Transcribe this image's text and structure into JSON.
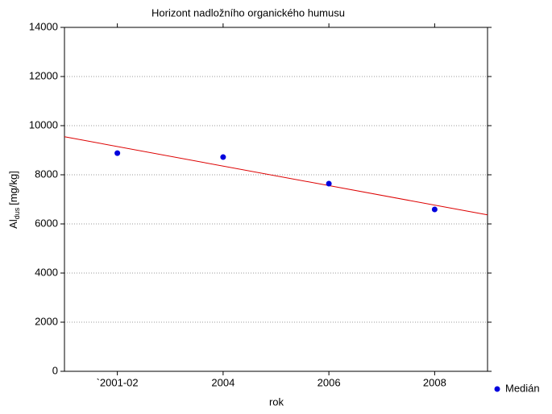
{
  "chart_data": {
    "type": "scatter",
    "title": "Horizont nadložního organického humusu",
    "xlabel": "rok",
    "ylabel": {
      "main": "Al",
      "sub": "dus",
      "unit": "[mg/kg]"
    },
    "categories": [
      "`2001-02",
      "2004",
      "2006",
      "2008"
    ],
    "series": [
      {
        "name": "Medián",
        "color": "#0000dd",
        "values": [
          8880,
          8720,
          7640,
          6590
        ]
      }
    ],
    "fit": "linear",
    "fit_color": "#dd0000",
    "ylim": [
      0,
      14000
    ],
    "yticks": [
      0,
      2000,
      4000,
      6000,
      8000,
      10000,
      12000,
      14000
    ],
    "grid": true,
    "legend": "bottom-right"
  }
}
